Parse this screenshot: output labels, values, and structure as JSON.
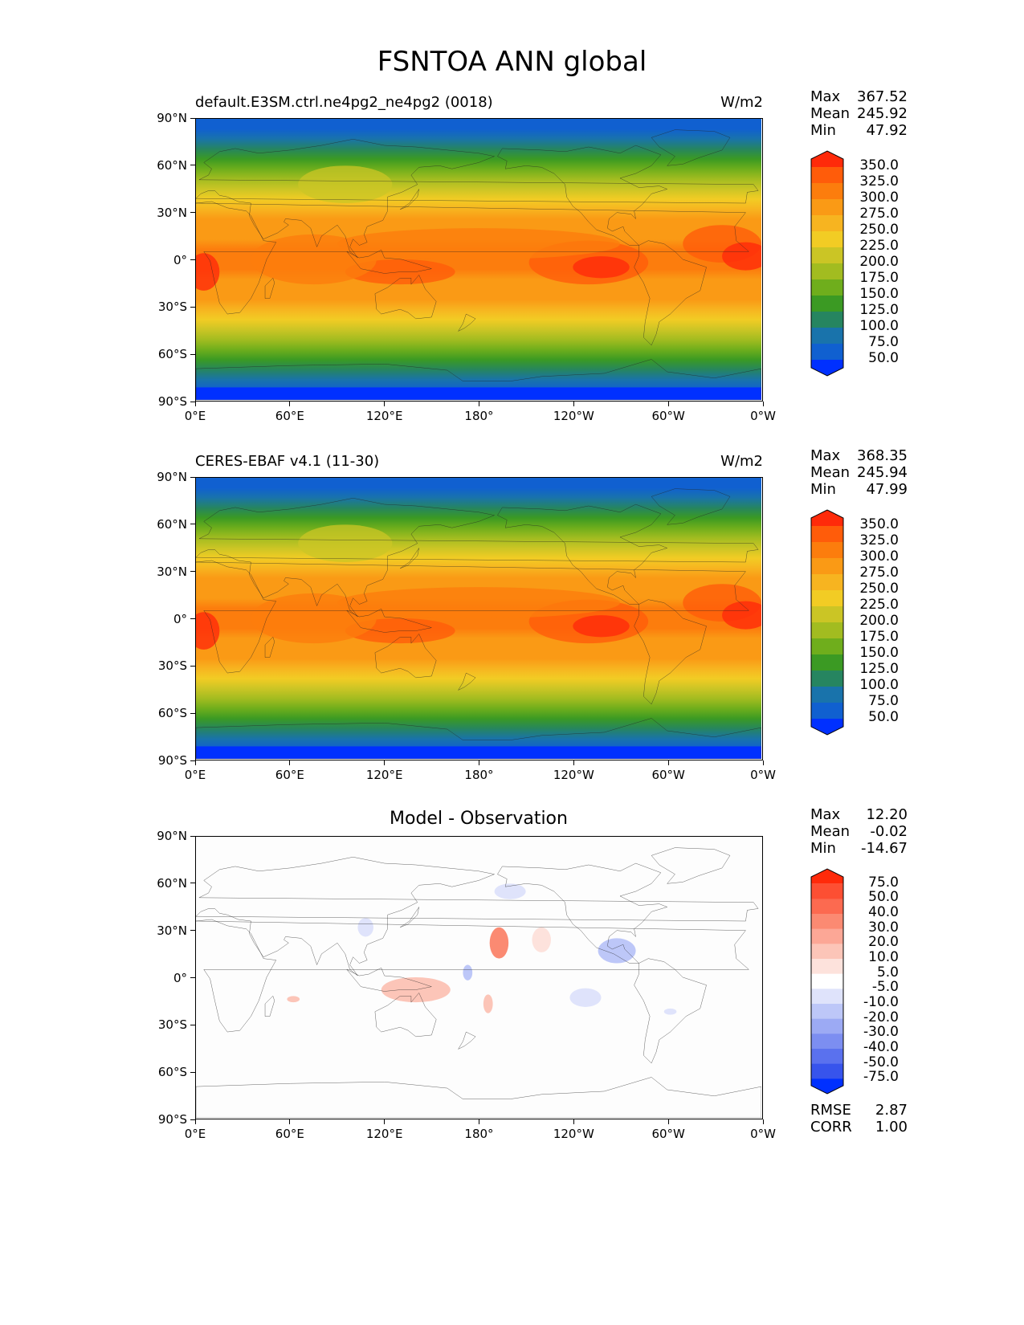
{
  "title": "FSNTOA ANN global",
  "panels": [
    {
      "id": "test",
      "left_title": "default.E3SM.ctrl.ne4pg2_ne4pg2 (0018)",
      "center_title": "",
      "units": "W/m2",
      "stats": [
        {
          "name": "Max",
          "value": "367.52"
        },
        {
          "name": "Mean",
          "value": "245.92"
        },
        {
          "name": "Min",
          "value": "47.92"
        }
      ],
      "colorbar": {
        "labels": [
          "350.0",
          "325.0",
          "300.0",
          "275.0",
          "250.0",
          "225.0",
          "200.0",
          "175.0",
          "150.0",
          "125.0",
          "100.0",
          "75.0",
          "50.0"
        ],
        "colors": [
          "#ff2a0a",
          "#ff5c0a",
          "#fc7d0d",
          "#fa9a15",
          "#f7b420",
          "#f2cc24",
          "#cbc525",
          "#a2bc20",
          "#6fae1c",
          "#3b9a23",
          "#268560",
          "#1973ab",
          "#1060d0",
          "#0030ff"
        ]
      },
      "extra_stats": []
    },
    {
      "id": "ref",
      "left_title": "CERES-EBAF v4.1 (11-30)",
      "center_title": "",
      "units": "W/m2",
      "stats": [
        {
          "name": "Max",
          "value": "368.35"
        },
        {
          "name": "Mean",
          "value": "245.94"
        },
        {
          "name": "Min",
          "value": "47.99"
        }
      ],
      "colorbar": {
        "labels": [
          "350.0",
          "325.0",
          "300.0",
          "275.0",
          "250.0",
          "225.0",
          "200.0",
          "175.0",
          "150.0",
          "125.0",
          "100.0",
          "75.0",
          "50.0"
        ],
        "colors": [
          "#ff2a0a",
          "#ff5c0a",
          "#fc7d0d",
          "#fa9a15",
          "#f7b420",
          "#f2cc24",
          "#cbc525",
          "#a2bc20",
          "#6fae1c",
          "#3b9a23",
          "#268560",
          "#1973ab",
          "#1060d0",
          "#0030ff"
        ]
      },
      "extra_stats": []
    },
    {
      "id": "diff",
      "left_title": "",
      "center_title": "Model - Observation",
      "units": "",
      "stats": [
        {
          "name": "Max",
          "value": "12.20"
        },
        {
          "name": "Mean",
          "value": "-0.02"
        },
        {
          "name": "Min",
          "value": "-14.67"
        }
      ],
      "colorbar": {
        "labels": [
          "75.0",
          "50.0",
          "40.0",
          "30.0",
          "20.0",
          "10.0",
          "5.0",
          "-5.0",
          "-10.0",
          "-20.0",
          "-30.0",
          "-40.0",
          "-50.0",
          "-75.0"
        ],
        "colors": [
          "#ff2a0a",
          "#fd4f33",
          "#fc6a50",
          "#fb8a72",
          "#fca796",
          "#fcc5b8",
          "#fde2dc",
          "#ffffff",
          "#dfe3fb",
          "#bdc7f8",
          "#9caaf4",
          "#7c8ef1",
          "#5a71ee",
          "#3754ec",
          "#0030ff"
        ]
      },
      "extra_stats": [
        {
          "name": "RMSE",
          "value": "2.87"
        },
        {
          "name": "CORR",
          "value": "1.00"
        }
      ]
    }
  ],
  "axes": {
    "lat_ticks": [
      "90°N",
      "60°N",
      "30°N",
      "0°",
      "30°S",
      "60°S",
      "90°S"
    ],
    "lon_ticks": [
      "0°E",
      "60°E",
      "120°E",
      "180°",
      "120°W",
      "60°W",
      "0°W"
    ]
  }
}
